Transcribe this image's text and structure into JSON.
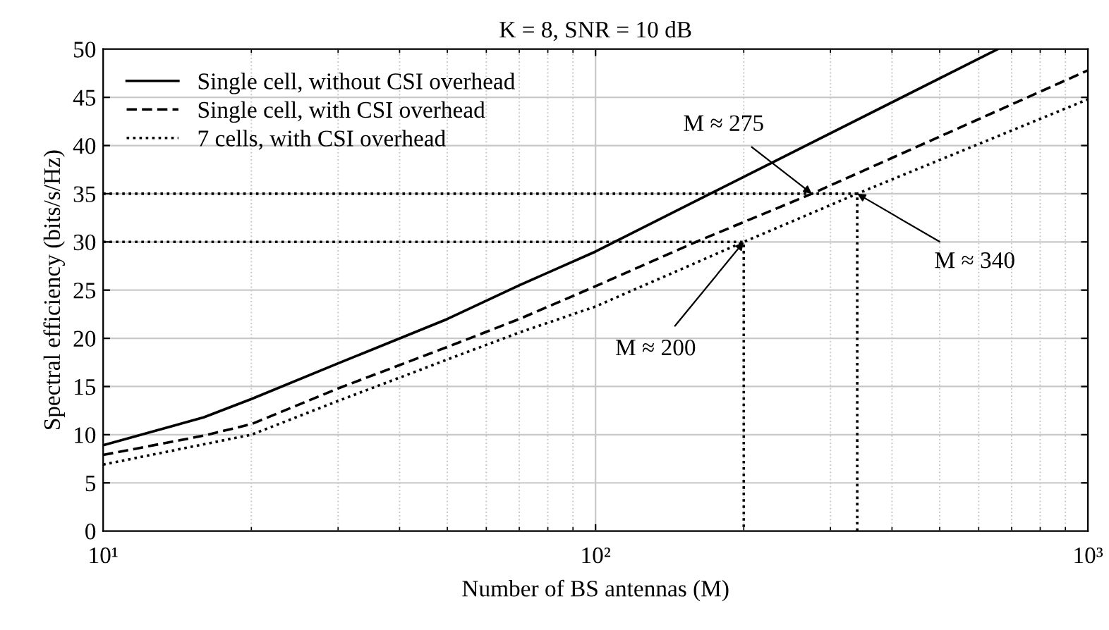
{
  "chart_data": {
    "type": "line",
    "title": "K = 8, SNR = 10 dB",
    "xlabel": "Number of BS antennas (M)",
    "ylabel": "Spectral efficiency (bits/s/Hz)",
    "log": "x",
    "xlim": [
      10,
      1000
    ],
    "xticks": [
      {
        "value": 10,
        "label": "10¹"
      },
      {
        "value": 100,
        "label": "10²"
      },
      {
        "value": 1000,
        "label": "10³"
      }
    ],
    "ylim": [
      0,
      50
    ],
    "yticks": [
      0,
      5,
      10,
      15,
      20,
      25,
      30,
      35,
      40,
      45,
      50
    ],
    "grid": true,
    "legend": "top left",
    "series": [
      {
        "name": "Single cell, without CSI overhead",
        "color": "#000000",
        "line_style": "solid",
        "x": [
          10,
          16,
          20,
          30,
          50,
          70,
          100,
          171,
          656
        ],
        "values": [
          8.9,
          11.8,
          13.7,
          17.4,
          22,
          25.5,
          29,
          35,
          50
        ]
      },
      {
        "name": "Single cell, with CSI overhead",
        "color": "#000000",
        "line_style": "dashed",
        "x": [
          10,
          16,
          20,
          30,
          50,
          70,
          100,
          160,
          275,
          1000
        ],
        "values": [
          7.9,
          9.9,
          11.1,
          14.8,
          19.1,
          22,
          25.4,
          30,
          35,
          47.8
        ]
      },
      {
        "name": "7 cells, with CSI overhead",
        "color": "#000000",
        "line_style": "dotted",
        "x": [
          10,
          16,
          20,
          30,
          50,
          70,
          100,
          200,
          340,
          1000
        ],
        "values": [
          6.9,
          9,
          10,
          13.5,
          17.8,
          20.6,
          23.3,
          30,
          35,
          44.8
        ]
      },
      {
        "color": "#000000",
        "line_style": "dotted",
        "x": [
          10,
          340,
          340
        ],
        "values": [
          35,
          35,
          0
        ]
      },
      {
        "color": "#000000",
        "line_style": "dotted",
        "x": [
          10,
          200,
          200
        ],
        "values": [
          30,
          30,
          0
        ]
      }
    ],
    "annotations": [
      {
        "text": "M ≈ 275",
        "x": 275,
        "y": 35
      },
      {
        "text": "M ≈ 340",
        "x": 340,
        "y": 35
      },
      {
        "text": "M ≈ 200",
        "x": 200,
        "y": 30
      }
    ]
  }
}
